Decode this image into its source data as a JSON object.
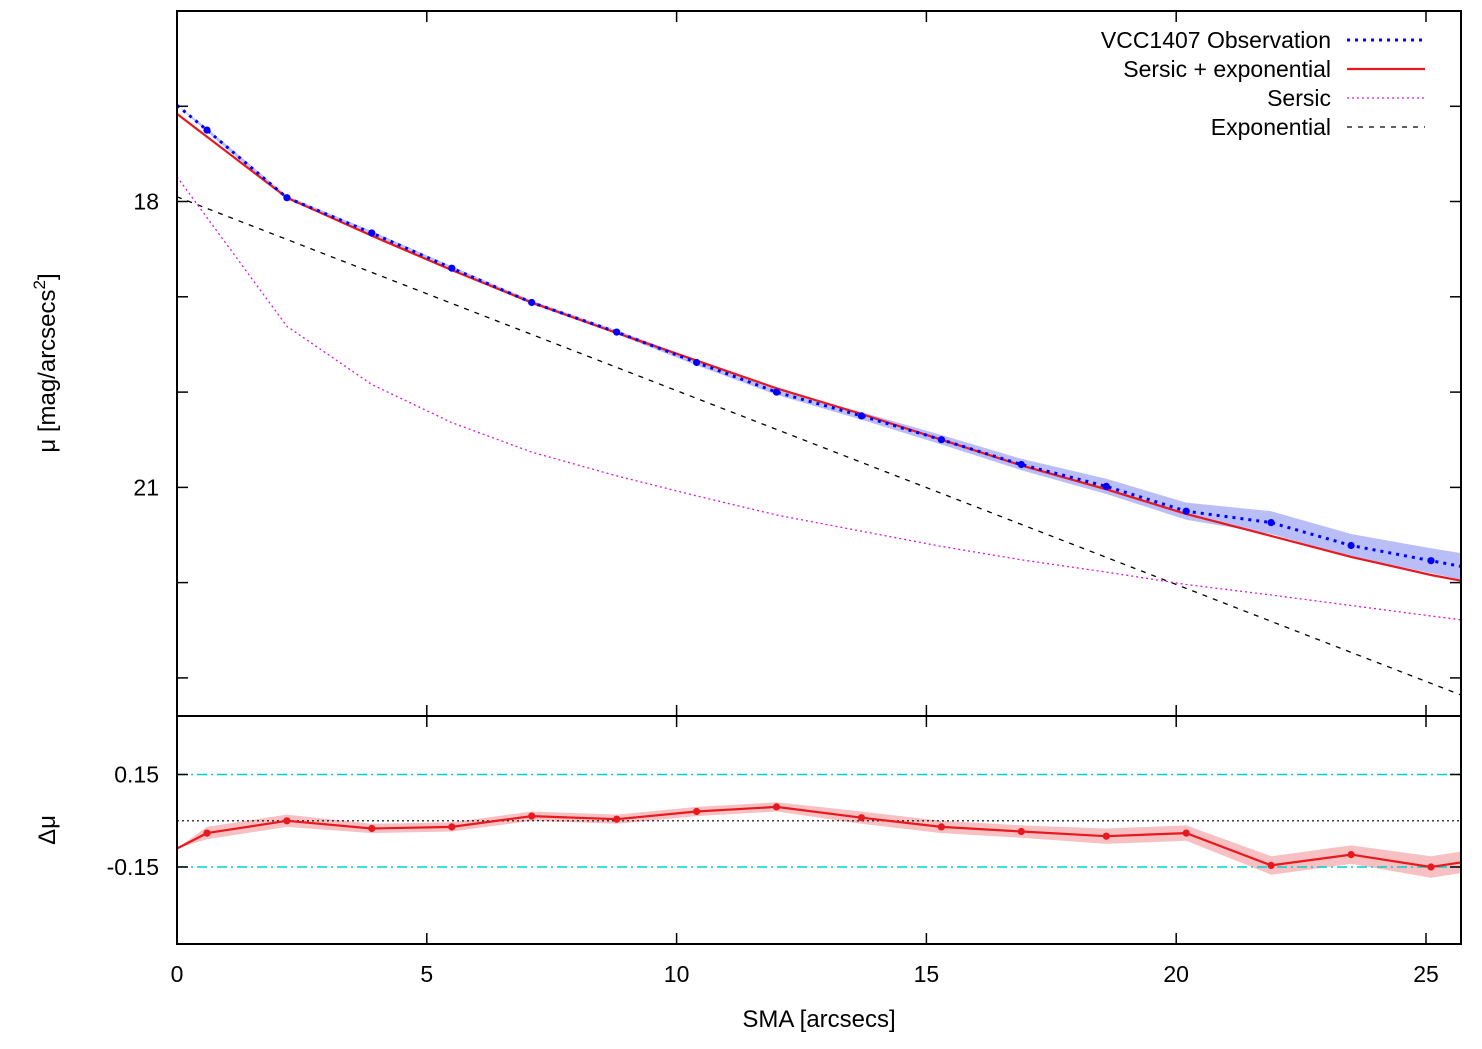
{
  "chart_data": [
    {
      "type": "line",
      "panel": "main",
      "ylabel": "μ [mag/arcsecs",
      "ylabel_sup": "2",
      "xlim": [
        0,
        25.7
      ],
      "ylim": [
        16.0,
        23.4
      ],
      "y_inverted": true,
      "yticks": [
        17,
        18,
        19,
        20,
        21,
        22,
        23
      ],
      "ytick_labels": [
        {
          "value": 18,
          "label": "18"
        },
        {
          "value": 21,
          "label": "21"
        }
      ],
      "legend_position": "top-right",
      "grid": false,
      "series": [
        {
          "name": "VCC1407 Observation",
          "color": "#0000ff",
          "style": "dotted-with-points",
          "x": [
            0.0,
            0.6,
            2.2,
            3.9,
            5.5,
            7.1,
            8.8,
            10.4,
            12.0,
            13.7,
            15.3,
            16.9,
            18.6,
            20.2,
            21.9,
            23.5,
            25.1,
            25.7
          ],
          "values": [
            16.99,
            17.25,
            17.96,
            18.33,
            18.7,
            19.06,
            19.37,
            19.69,
            20.0,
            20.25,
            20.5,
            20.76,
            20.99,
            21.25,
            21.37,
            21.61,
            21.77,
            21.83
          ],
          "band": [
            0,
            0.02,
            0.02,
            0.02,
            0.02,
            0.02,
            0.02,
            0.03,
            0.03,
            0.04,
            0.05,
            0.06,
            0.08,
            0.09,
            0.12,
            0.12,
            0.13,
            0.14
          ]
        },
        {
          "name": "Sersic + exponential",
          "color": "#e8191e",
          "style": "solid",
          "x": [
            0.0,
            2.2,
            3.9,
            5.5,
            7.1,
            8.8,
            10.4,
            12.0,
            13.7,
            15.3,
            16.9,
            18.6,
            20.2,
            21.9,
            23.5,
            25.1,
            25.7
          ],
          "values": [
            17.08,
            17.96,
            18.36,
            18.72,
            19.06,
            19.38,
            19.67,
            19.96,
            20.23,
            20.5,
            20.77,
            21.02,
            21.28,
            21.51,
            21.73,
            21.92,
            21.98
          ]
        },
        {
          "name": "Sersic",
          "color": "#d818d8",
          "style": "dotted",
          "x": [
            0.0,
            2.2,
            3.9,
            5.5,
            7.1,
            8.8,
            10.4,
            12.0,
            13.7,
            15.3,
            16.9,
            18.6,
            20.2,
            21.9,
            23.5,
            25.1,
            25.7
          ],
          "values": [
            17.74,
            19.31,
            19.92,
            20.32,
            20.63,
            20.88,
            21.09,
            21.29,
            21.46,
            21.62,
            21.76,
            21.89,
            22.02,
            22.13,
            22.24,
            22.35,
            22.39
          ]
        },
        {
          "name": "Exponential",
          "color": "#000000",
          "style": "dashed",
          "x": [
            0.0,
            25.7
          ],
          "values": [
            17.95,
            23.18
          ]
        }
      ]
    },
    {
      "type": "line",
      "panel": "residual",
      "xlabel": "SMA [arcsecs]",
      "ylabel": "Δμ",
      "xlim": [
        0,
        25.7
      ],
      "ylim": [
        -0.4,
        0.34
      ],
      "xticks": [
        0,
        5,
        10,
        15,
        20,
        25
      ],
      "ytick_labels": [
        {
          "value": 0.15,
          "label": "0.15"
        },
        {
          "value": -0.15,
          "label": "-0.15"
        }
      ],
      "reference_lines": [
        {
          "value": 0.15,
          "color": "#00d0d0",
          "style": "dash-dot"
        },
        {
          "value": -0.15,
          "color": "#00d0d0",
          "style": "dash-dot"
        },
        {
          "value": 0.0,
          "color": "#000000",
          "style": "dotted"
        }
      ],
      "series": [
        {
          "name": "",
          "color": "#e8191e",
          "style": "solid-with-points",
          "x": [
            0.0,
            0.6,
            2.2,
            3.9,
            5.5,
            7.1,
            8.8,
            10.4,
            12.0,
            13.7,
            15.3,
            16.9,
            18.6,
            20.2,
            21.9,
            23.5,
            25.1,
            25.7
          ],
          "values": [
            -0.09,
            -0.04,
            0.0,
            -0.025,
            -0.02,
            0.015,
            0.005,
            0.03,
            0.045,
            0.01,
            -0.02,
            -0.035,
            -0.05,
            -0.04,
            -0.145,
            -0.11,
            -0.15,
            -0.135
          ],
          "band": [
            0,
            0.02,
            0.02,
            0.015,
            0.015,
            0.015,
            0.015,
            0.015,
            0.015,
            0.02,
            0.02,
            0.02,
            0.025,
            0.025,
            0.03,
            0.03,
            0.035,
            0.035
          ]
        }
      ]
    }
  ]
}
